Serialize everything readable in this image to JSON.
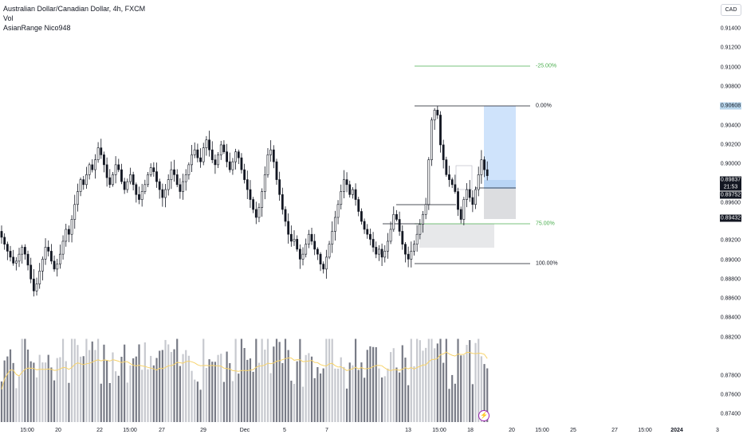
{
  "legend": {
    "title": "Australian Dollar/Canadian Dollar, 4h, FXCM",
    "vol": "Vol",
    "indicator": "AsianRange Nico948"
  },
  "currency_button": "CAD",
  "price_axis": {
    "ticks": [
      "0.91400",
      "0.91200",
      "0.91000",
      "0.90800",
      "0.90400",
      "0.90200",
      "0.90000",
      "0.89600",
      "0.89200",
      "0.89000",
      "0.88800",
      "0.88600",
      "0.88400",
      "0.88200",
      "0.87800",
      "0.87600",
      "0.87400"
    ],
    "labels": {
      "fib_top": "0.90608",
      "current_price": "0.89837",
      "countdown": "21:53",
      "level_a": "0.89752",
      "level_b": "0.89432"
    }
  },
  "time_axis": {
    "ticks": [
      "15:00",
      "20",
      "22",
      "15:00",
      "27",
      "29",
      "Dec",
      "5",
      "7",
      "13",
      "15:00",
      "18",
      "20",
      "15:00",
      "25",
      "27",
      "15:00",
      "2024",
      "3"
    ]
  },
  "fib_levels": [
    {
      "label": "-25.00%",
      "price": 0.9101
    },
    {
      "label": "0.00%",
      "price": 0.90608
    },
    {
      "label": "75.00%",
      "price": 0.89403
    },
    {
      "label": "100.00%",
      "price": 0.89001
    }
  ],
  "colors": {
    "bull": "#131722",
    "bear": "#131722",
    "fib_line": "#131722",
    "fib_green": "#4caf50",
    "target_zone": "#cfe3fb",
    "stop_zone": "#dcdde0",
    "range_box": "#e7e8ea",
    "vol_dark": "#787b86",
    "vol_light": "#c7c9cf",
    "vol_ma": "#f7d36b"
  },
  "chart_data": {
    "type": "candlestick",
    "interval": "4h",
    "price_range": [
      0.8736,
      0.9152
    ],
    "closes": [
      0.8922,
      0.8915,
      0.8908,
      0.8902,
      0.8896,
      0.8898,
      0.8905,
      0.8912,
      0.8905,
      0.8894,
      0.888,
      0.8868,
      0.8875,
      0.8888,
      0.89,
      0.8912,
      0.8908,
      0.8898,
      0.889,
      0.8895,
      0.8905,
      0.8918,
      0.893,
      0.8925,
      0.894,
      0.8955,
      0.8968,
      0.898,
      0.8975,
      0.8985,
      0.8995,
      0.899,
      0.9,
      0.9012,
      0.9005,
      0.8995,
      0.8982,
      0.8975,
      0.8985,
      0.8995,
      0.899,
      0.8978,
      0.897,
      0.8978,
      0.8985,
      0.8975,
      0.8965,
      0.896,
      0.8968,
      0.8975,
      0.8985,
      0.8992,
      0.8988,
      0.8978,
      0.897,
      0.8962,
      0.897,
      0.898,
      0.899,
      0.8985,
      0.8975,
      0.8968,
      0.8978,
      0.8985,
      0.8995,
      0.9005,
      0.901,
      0.9002,
      0.8998,
      0.9012,
      0.902,
      0.901,
      0.9,
      0.8995,
      0.9005,
      0.9015,
      0.9008,
      0.8998,
      0.899,
      0.8998,
      0.9008,
      0.9002,
      0.899,
      0.898,
      0.897,
      0.896,
      0.895,
      0.8942,
      0.8952,
      0.8968,
      0.8985,
      0.9005,
      0.901,
      0.8998,
      0.898,
      0.8965,
      0.895,
      0.8938,
      0.8925,
      0.8918,
      0.892,
      0.891,
      0.89,
      0.8905,
      0.8915,
      0.8925,
      0.8918,
      0.891,
      0.8905,
      0.8895,
      0.889,
      0.8902,
      0.8915,
      0.8928,
      0.8942,
      0.8955,
      0.8968,
      0.898,
      0.8975,
      0.8965,
      0.897,
      0.896,
      0.8948,
      0.8938,
      0.893,
      0.8925,
      0.892,
      0.8912,
      0.8905,
      0.891,
      0.8902,
      0.8908,
      0.8918,
      0.893,
      0.8945,
      0.894,
      0.8928,
      0.8915,
      0.8905,
      0.89,
      0.8908,
      0.8915,
      0.8925,
      0.8935,
      0.8945,
      0.8955,
      0.9,
      0.904,
      0.905,
      0.9045,
      0.9015,
      0.9,
      0.8985,
      0.898,
      0.8975,
      0.8968,
      0.895,
      0.894,
      0.896,
      0.897,
      0.8962,
      0.8955,
      0.897,
      0.8985,
      0.9,
      0.899,
      0.8984
    ]
  }
}
